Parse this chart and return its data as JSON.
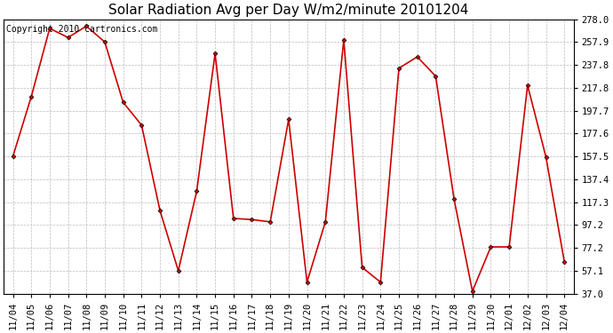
{
  "title": "Solar Radiation Avg per Day W/m2/minute 20101204",
  "copyright": "Copyright 2010 Cartronics.com",
  "labels": [
    "11/04",
    "11/05",
    "11/06",
    "11/07",
    "11/08",
    "11/09",
    "11/10",
    "11/11",
    "11/12",
    "11/13",
    "11/14",
    "11/15",
    "11/16",
    "11/17",
    "11/18",
    "11/19",
    "11/20",
    "11/21",
    "11/22",
    "11/23",
    "11/24",
    "11/25",
    "11/26",
    "11/27",
    "11/28",
    "11/29",
    "11/30",
    "12/01",
    "12/02",
    "12/03",
    "12/04"
  ],
  "values": [
    157.5,
    210,
    270,
    262,
    272,
    258,
    205,
    185,
    110,
    57,
    127,
    248,
    103,
    102,
    100,
    190,
    47,
    100,
    260,
    60,
    47,
    235,
    245,
    228,
    120,
    39,
    78,
    78,
    220,
    157,
    65
  ],
  "yticks": [
    37.0,
    57.1,
    77.2,
    97.2,
    117.3,
    137.4,
    157.5,
    177.6,
    197.7,
    217.8,
    237.8,
    257.9,
    278.0
  ],
  "ymin": 37.0,
  "ymax": 278.0,
  "line_color": "#cc0000",
  "marker_color": "#000000",
  "bg_color": "#ffffff",
  "grid_color": "#bbbbbb",
  "title_fontsize": 11,
  "copyright_fontsize": 7,
  "tick_fontsize": 7.5
}
